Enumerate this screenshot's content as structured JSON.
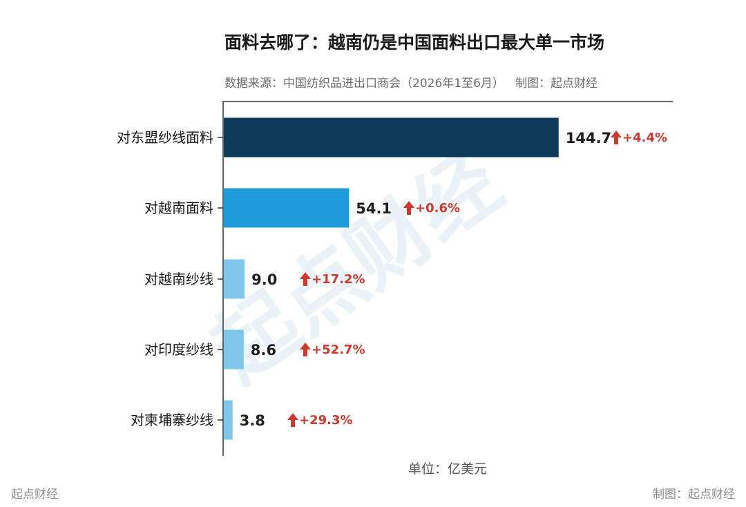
{
  "page": {
    "watermark": "起点财经",
    "footer_left": "起点财经",
    "footer_right": "制图：起点财经"
  },
  "colors": {
    "bar_top": "#0e3a5a",
    "bar_mid": "#1f9ad8",
    "bar_light": "#7ec7ea",
    "up_arrow": "#cc3a2e",
    "axis": "#333333"
  },
  "chart_data": {
    "type": "bar",
    "orientation": "horizontal",
    "title": "面料去哪了：越南仍是中国面料出口最大单一市场",
    "subtitle": "数据来源：中国纺织品进出口商会（2026年1至6月）   制图：起点财经",
    "unit": "单位：亿美元",
    "categories": [
      "对东盟纱线面料",
      "对越南面料",
      "对越南纱线",
      "对印度纱线",
      "对柬埔寨纱线"
    ],
    "values": [
      144.7,
      54.1,
      9.0,
      8.6,
      3.8
    ],
    "value_labels": [
      "144.7",
      "54.1",
      "9.0",
      "8.6",
      "3.8"
    ],
    "changes": [
      "+4.4%",
      "+0.6%",
      "+17.2%",
      "+52.7%",
      "+29.3%"
    ],
    "change_icon": "up-arrow-icon",
    "bar_colors": [
      "#0e3a5a",
      "#1f9ad8",
      "#7ec7ea",
      "#7ec7ea",
      "#7ec7ea"
    ],
    "xlim": [
      0,
      150
    ],
    "grid": false,
    "legend": "none"
  }
}
